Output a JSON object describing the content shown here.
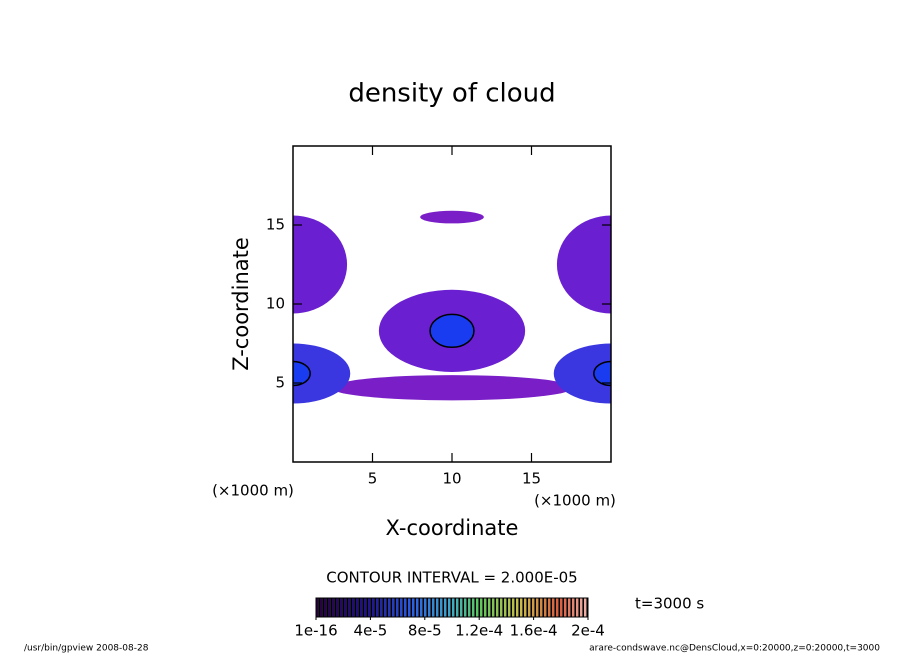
{
  "chart_data": {
    "type": "contour",
    "title": "density of cloud",
    "x_label": "X-coordinate",
    "y_label": "Z-coordinate",
    "x_unit_label": "(×1000 m)",
    "y_unit_label": "(×1000 m)",
    "xlim": [
      0,
      20
    ],
    "ylim": [
      0,
      20
    ],
    "xticks": [
      5,
      10,
      15
    ],
    "yticks": [
      5,
      10,
      15
    ],
    "features": [
      {
        "x": 10,
        "z": 15.5,
        "rx": 2,
        "rz": 0.4,
        "value": 1e-05,
        "color": "#7a1fc8"
      },
      {
        "x": 10,
        "z": 8.3,
        "rx": 4.6,
        "rz": 2.6,
        "value": 6e-05,
        "color": "#6a1fd0"
      },
      {
        "x": 0,
        "z": 12.5,
        "rx": 3.4,
        "rz": 3.1,
        "value": 3e-05,
        "color": "#6a1fd0"
      },
      {
        "x": 20,
        "z": 12.5,
        "rx": 3.4,
        "rz": 3.1,
        "value": 3e-05,
        "color": "#6a1fd0"
      },
      {
        "x": 10,
        "z": 4.7,
        "rx": 7.6,
        "rz": 0.8,
        "value": 2e-05,
        "color": "#7a1fc8"
      },
      {
        "x": 0,
        "z": 5.6,
        "rx": 3.6,
        "rz": 1.9,
        "value": 8e-05,
        "color": "#3a36e0"
      },
      {
        "x": 20,
        "z": 5.6,
        "rx": 3.6,
        "rz": 1.9,
        "value": 8e-05,
        "color": "#3a36e0"
      }
    ],
    "contour_interval_label": "CONTOUR INTERVAL = 2.000E-05",
    "time_label": "t=3000 s",
    "colorbar_lim": [
      0,
      0.0002
    ],
    "colorbar_ticks": [
      {
        "value": 1e-16,
        "label": "1e-16"
      },
      {
        "value": 4e-05,
        "label": "4e-5"
      },
      {
        "value": 8e-05,
        "label": "8e-5"
      },
      {
        "value": 0.00012,
        "label": "1.2e-4"
      },
      {
        "value": 0.00016,
        "label": "1.6e-4"
      },
      {
        "value": 0.0002,
        "label": "2e-4"
      }
    ],
    "footer_left": "/usr/bin/gpview   2008-08-28",
    "footer_right": "arare-condswave.nc@DensCloud,x=0:20000,z=0:20000,t=3000"
  }
}
